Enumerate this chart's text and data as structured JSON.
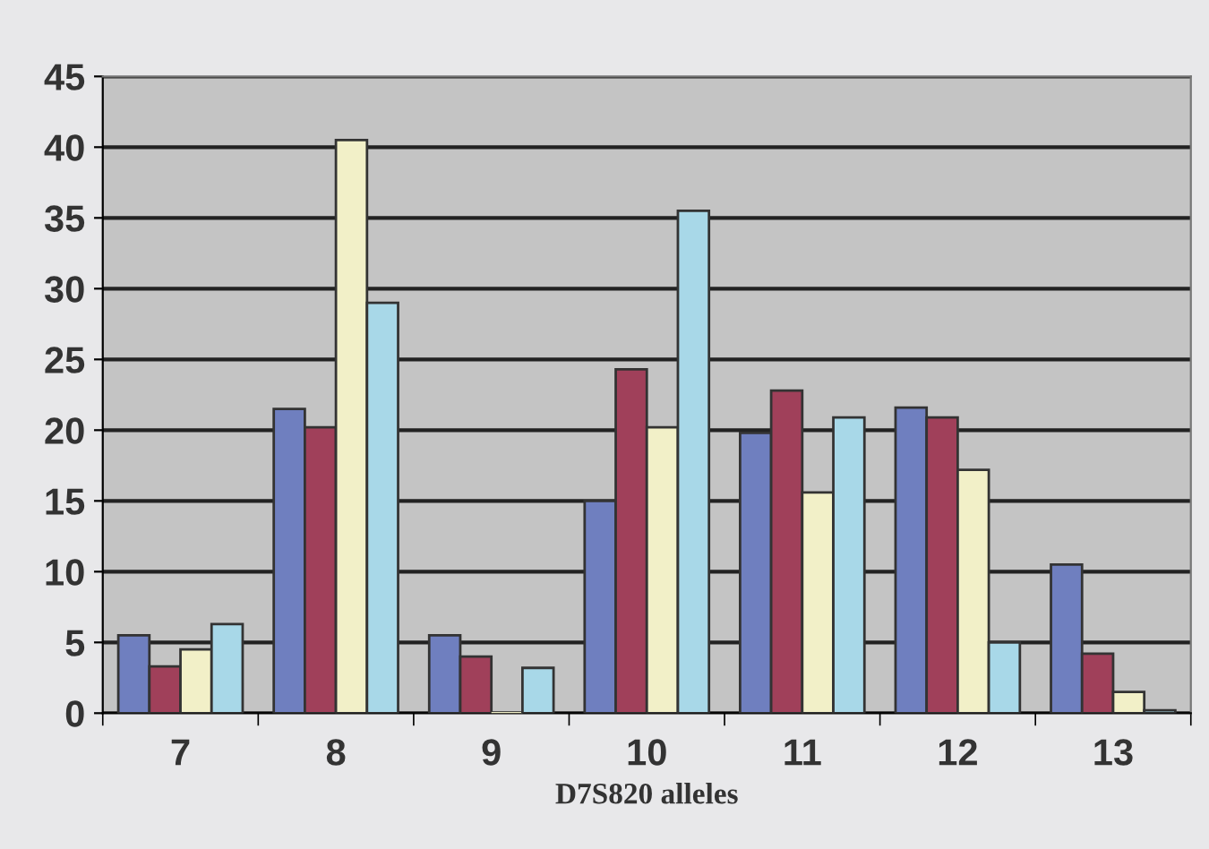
{
  "chart_data": {
    "type": "bar",
    "xlabel": "D7S820 alleles",
    "categories": [
      "7",
      "8",
      "9",
      "10",
      "11",
      "12",
      "13"
    ],
    "series": [
      {
        "color": "#6f7fbf",
        "values": [
          5.5,
          21.5,
          5.5,
          15,
          19.8,
          21.6,
          10.5
        ]
      },
      {
        "color": "#a0405a",
        "values": [
          3.3,
          20.2,
          4,
          24.3,
          22.8,
          20.9,
          4.2
        ]
      },
      {
        "color": "#f2f0c8",
        "values": [
          4.5,
          40.5,
          0,
          20.2,
          15.6,
          17.2,
          1.5
        ]
      },
      {
        "color": "#a8d8e8",
        "values": [
          6.3,
          29,
          3.2,
          35.5,
          20.9,
          5,
          0.2
        ]
      }
    ],
    "ylim": [
      0,
      45
    ],
    "yticks": [
      0,
      5,
      10,
      15,
      20,
      25,
      30,
      35,
      40,
      45
    ],
    "grid": "y",
    "legend": false
  }
}
